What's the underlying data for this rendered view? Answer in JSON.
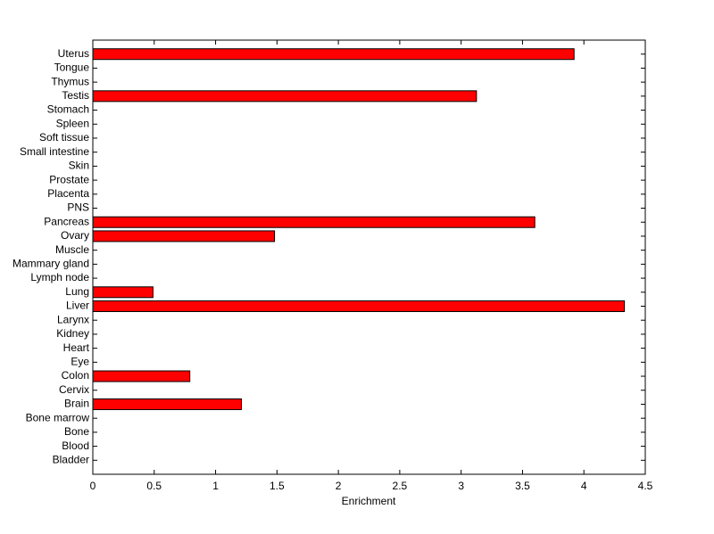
{
  "chart_data": {
    "type": "barh",
    "xlabel": "Enrichment",
    "categories": [
      "Bladder",
      "Blood",
      "Bone",
      "Bone marrow",
      "Brain",
      "Cervix",
      "Colon",
      "Eye",
      "Heart",
      "Kidney",
      "Larynx",
      "Liver",
      "Lung",
      "Lymph node",
      "Mammary gland",
      "Muscle",
      "Ovary",
      "Pancreas",
      "PNS",
      "Placenta",
      "Prostate",
      "Skin",
      "Small intestine",
      "Soft tissue",
      "Spleen",
      "Stomach",
      "Testis",
      "Thymus",
      "Tongue",
      "Uterus"
    ],
    "values": [
      0,
      0,
      0,
      0,
      1.21,
      0,
      0.79,
      0,
      0,
      0,
      0,
      4.33,
      0.49,
      0,
      0,
      0,
      1.48,
      3.6,
      0,
      0,
      0,
      0,
      0,
      0,
      0,
      0,
      3.125,
      0,
      0,
      3.92
    ],
    "color": "#ff0000",
    "xlim": [
      0,
      4.5
    ],
    "xticks": [
      0,
      0.5,
      1,
      1.5,
      2,
      2.5,
      3,
      3.5,
      4,
      4.5
    ]
  }
}
